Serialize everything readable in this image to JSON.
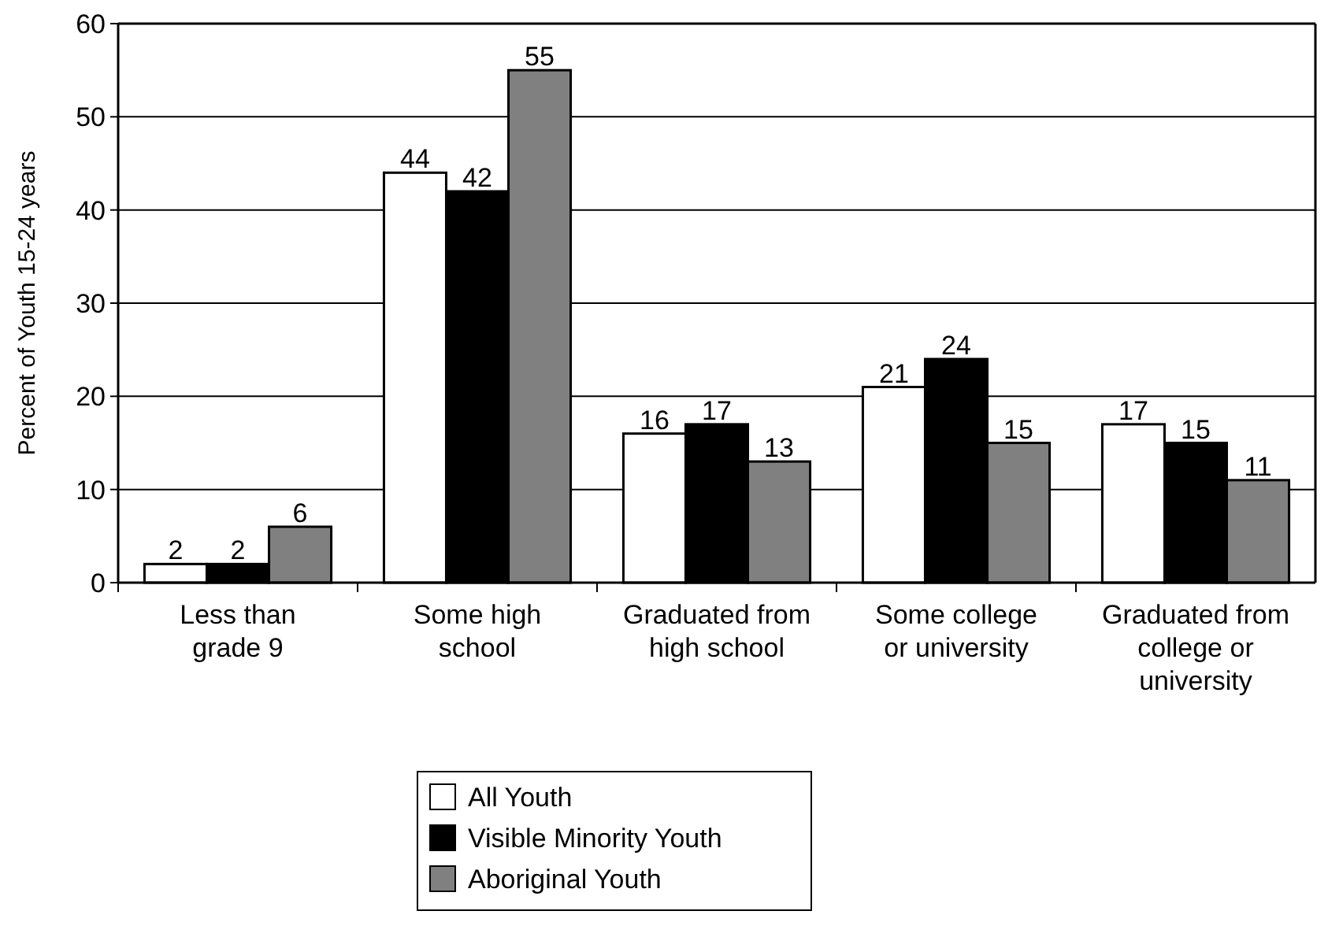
{
  "chart_data": {
    "type": "bar",
    "ylabel": "Percent of Youth 15-24 years",
    "categories": [
      "Less than grade 9",
      "Some high school",
      "Graduated from high school",
      "Some college or university",
      "Graduated from college or university"
    ],
    "series": [
      {
        "name": "All Youth",
        "color": "#ffffff",
        "values": [
          2,
          44,
          16,
          21,
          17
        ]
      },
      {
        "name": "Visible Minority Youth",
        "color": "#000000",
        "values": [
          2,
          42,
          17,
          24,
          15
        ]
      },
      {
        "name": "Aboriginal Youth",
        "color": "#808080",
        "values": [
          6,
          55,
          13,
          15,
          11
        ]
      }
    ],
    "ylim": [
      0,
      60
    ],
    "yticks": [
      0,
      10,
      20,
      30,
      40,
      50,
      60
    ],
    "grid": "y",
    "data_labels": true,
    "legend": "bottom"
  }
}
